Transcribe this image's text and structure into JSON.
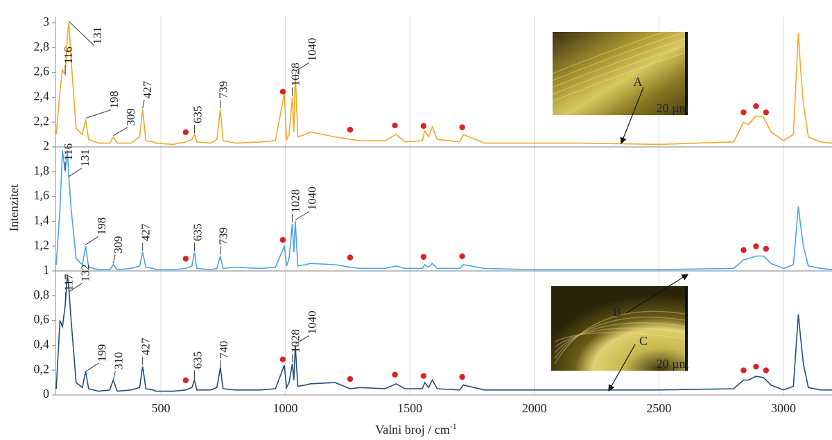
{
  "chart_data": {
    "type": "line",
    "y_label": "Intenzitet",
    "x_label": "Valni broj / cm",
    "x_label_sup": "-1",
    "xlim": [
      77,
      3195
    ],
    "ylim": [
      0,
      3.05
    ],
    "xticks": [
      500,
      1000,
      1500,
      2000,
      2500,
      3000
    ],
    "yticks": [
      0,
      {
        "value": 0.2,
        "label": "0,2"
      },
      {
        "value": 0.4,
        "label": "0,4"
      },
      {
        "value": 0.6,
        "label": "0,6"
      },
      {
        "value": 0.8,
        "label": "0,8"
      },
      1,
      {
        "value": 1.2,
        "label": "1,2"
      },
      {
        "value": 1.4,
        "label": "1,4"
      },
      {
        "value": 1.6,
        "label": "1,6"
      },
      {
        "value": 1.8,
        "label": "1,8"
      },
      2,
      {
        "value": 2.2,
        "label": "2,2"
      },
      {
        "value": 2.4,
        "label": "2,4"
      },
      {
        "value": 2.6,
        "label": "2,6"
      },
      {
        "value": 2.8,
        "label": "2,8"
      },
      3
    ],
    "grid": "x",
    "separators": [
      1,
      2
    ],
    "marker_color": "#e02020",
    "x": [
      80,
      95,
      105,
      116,
      125,
      131,
      140,
      160,
      185,
      198,
      210,
      250,
      295,
      309,
      325,
      380,
      415,
      427,
      440,
      470,
      480,
      550,
      600,
      625,
      635,
      645,
      700,
      725,
      739,
      750,
      800,
      900,
      960,
      996,
      1005,
      1015,
      1028,
      1034,
      1040,
      1050,
      1080,
      1100,
      1200,
      1260,
      1300,
      1400,
      1445,
      1480,
      1550,
      1560,
      1575,
      1590,
      1610,
      1700,
      1715,
      1800,
      2000,
      2200,
      2500,
      2800,
      2840,
      2860,
      2890,
      2920,
      2950,
      3000,
      3040,
      3060,
      3068,
      3080,
      3100,
      3150,
      3195
    ],
    "series": [
      {
        "color": "#f0a828",
        "values": [
          2.1,
          2.45,
          2.62,
          2.58,
          2.9,
          3.0,
          2.7,
          2.15,
          2.1,
          2.22,
          2.06,
          2.03,
          2.03,
          2.08,
          2.03,
          2.03,
          2.08,
          2.3,
          2.05,
          2.04,
          2.03,
          2.02,
          2.04,
          2.06,
          2.1,
          2.04,
          2.03,
          2.06,
          2.3,
          2.05,
          2.03,
          2.04,
          2.05,
          2.43,
          2.06,
          2.1,
          2.4,
          2.12,
          2.6,
          2.08,
          2.1,
          2.12,
          2.08,
          2.06,
          2.05,
          2.05,
          2.1,
          2.04,
          2.05,
          2.13,
          2.08,
          2.16,
          2.06,
          2.04,
          2.1,
          2.03,
          2.03,
          2.03,
          2.02,
          2.04,
          2.2,
          2.18,
          2.25,
          2.24,
          2.12,
          2.05,
          2.1,
          2.92,
          2.65,
          2.35,
          2.08,
          2.04,
          2.03
        ],
        "annotations": [
          "116",
          "131",
          "198",
          "309",
          "427",
          "635",
          "739",
          "1028",
          "1040"
        ],
        "markers": [
          600,
          990,
          1260,
          1440,
          1555,
          1710,
          2840,
          2890,
          2930
        ]
      },
      {
        "color": "#4ea3e0",
        "values": [
          1.05,
          1.5,
          1.97,
          1.8,
          1.97,
          1.75,
          1.5,
          1.1,
          1.05,
          1.2,
          1.03,
          1.01,
          1.01,
          1.05,
          1.01,
          1.02,
          1.04,
          1.15,
          1.03,
          1.02,
          1.01,
          1.01,
          1.02,
          1.04,
          1.15,
          1.02,
          1.01,
          1.02,
          1.12,
          1.02,
          1.03,
          1.02,
          1.03,
          1.2,
          1.04,
          1.1,
          1.38,
          1.15,
          1.4,
          1.04,
          1.05,
          1.06,
          1.05,
          1.03,
          1.02,
          1.02,
          1.04,
          1.02,
          1.02,
          1.05,
          1.03,
          1.06,
          1.02,
          1.02,
          1.05,
          1.02,
          1.01,
          1.01,
          1.01,
          1.02,
          1.09,
          1.1,
          1.12,
          1.12,
          1.06,
          1.02,
          1.05,
          1.52,
          1.38,
          1.2,
          1.04,
          1.02,
          1.01
        ],
        "annotations": [
          "116",
          "131",
          "198",
          "309",
          "427",
          "635",
          "739",
          "1028",
          "1040"
        ],
        "markers": [
          600,
          990,
          1260,
          1555,
          1710,
          2840,
          2890,
          2930
        ]
      },
      {
        "color": "#1f4e79",
        "values": [
          0.05,
          0.6,
          0.55,
          0.72,
          0.97,
          0.85,
          0.6,
          0.1,
          0.06,
          0.19,
          0.05,
          0.03,
          0.04,
          0.12,
          0.03,
          0.04,
          0.06,
          0.23,
          0.05,
          0.04,
          0.03,
          0.03,
          0.04,
          0.06,
          0.12,
          0.04,
          0.04,
          0.06,
          0.22,
          0.05,
          0.04,
          0.04,
          0.05,
          0.24,
          0.06,
          0.1,
          0.25,
          0.12,
          0.4,
          0.07,
          0.08,
          0.09,
          0.1,
          0.05,
          0.06,
          0.05,
          0.09,
          0.05,
          0.05,
          0.1,
          0.06,
          0.12,
          0.05,
          0.04,
          0.08,
          0.04,
          0.04,
          0.04,
          0.04,
          0.05,
          0.12,
          0.12,
          0.15,
          0.14,
          0.08,
          0.04,
          0.07,
          0.65,
          0.48,
          0.25,
          0.06,
          0.04,
          0.04
        ],
        "annotations": [
          "117",
          "132",
          "199",
          "310",
          "427",
          "635",
          "740",
          "1028",
          "1040"
        ],
        "markers": [
          600,
          990,
          1260,
          1440,
          1555,
          1710,
          2840,
          2890,
          2930
        ]
      }
    ],
    "insets": [
      {
        "labels": [
          "A"
        ],
        "scale": "20 µm"
      },
      {
        "labels": [
          "B",
          "C"
        ],
        "scale": "20 µm"
      }
    ]
  }
}
